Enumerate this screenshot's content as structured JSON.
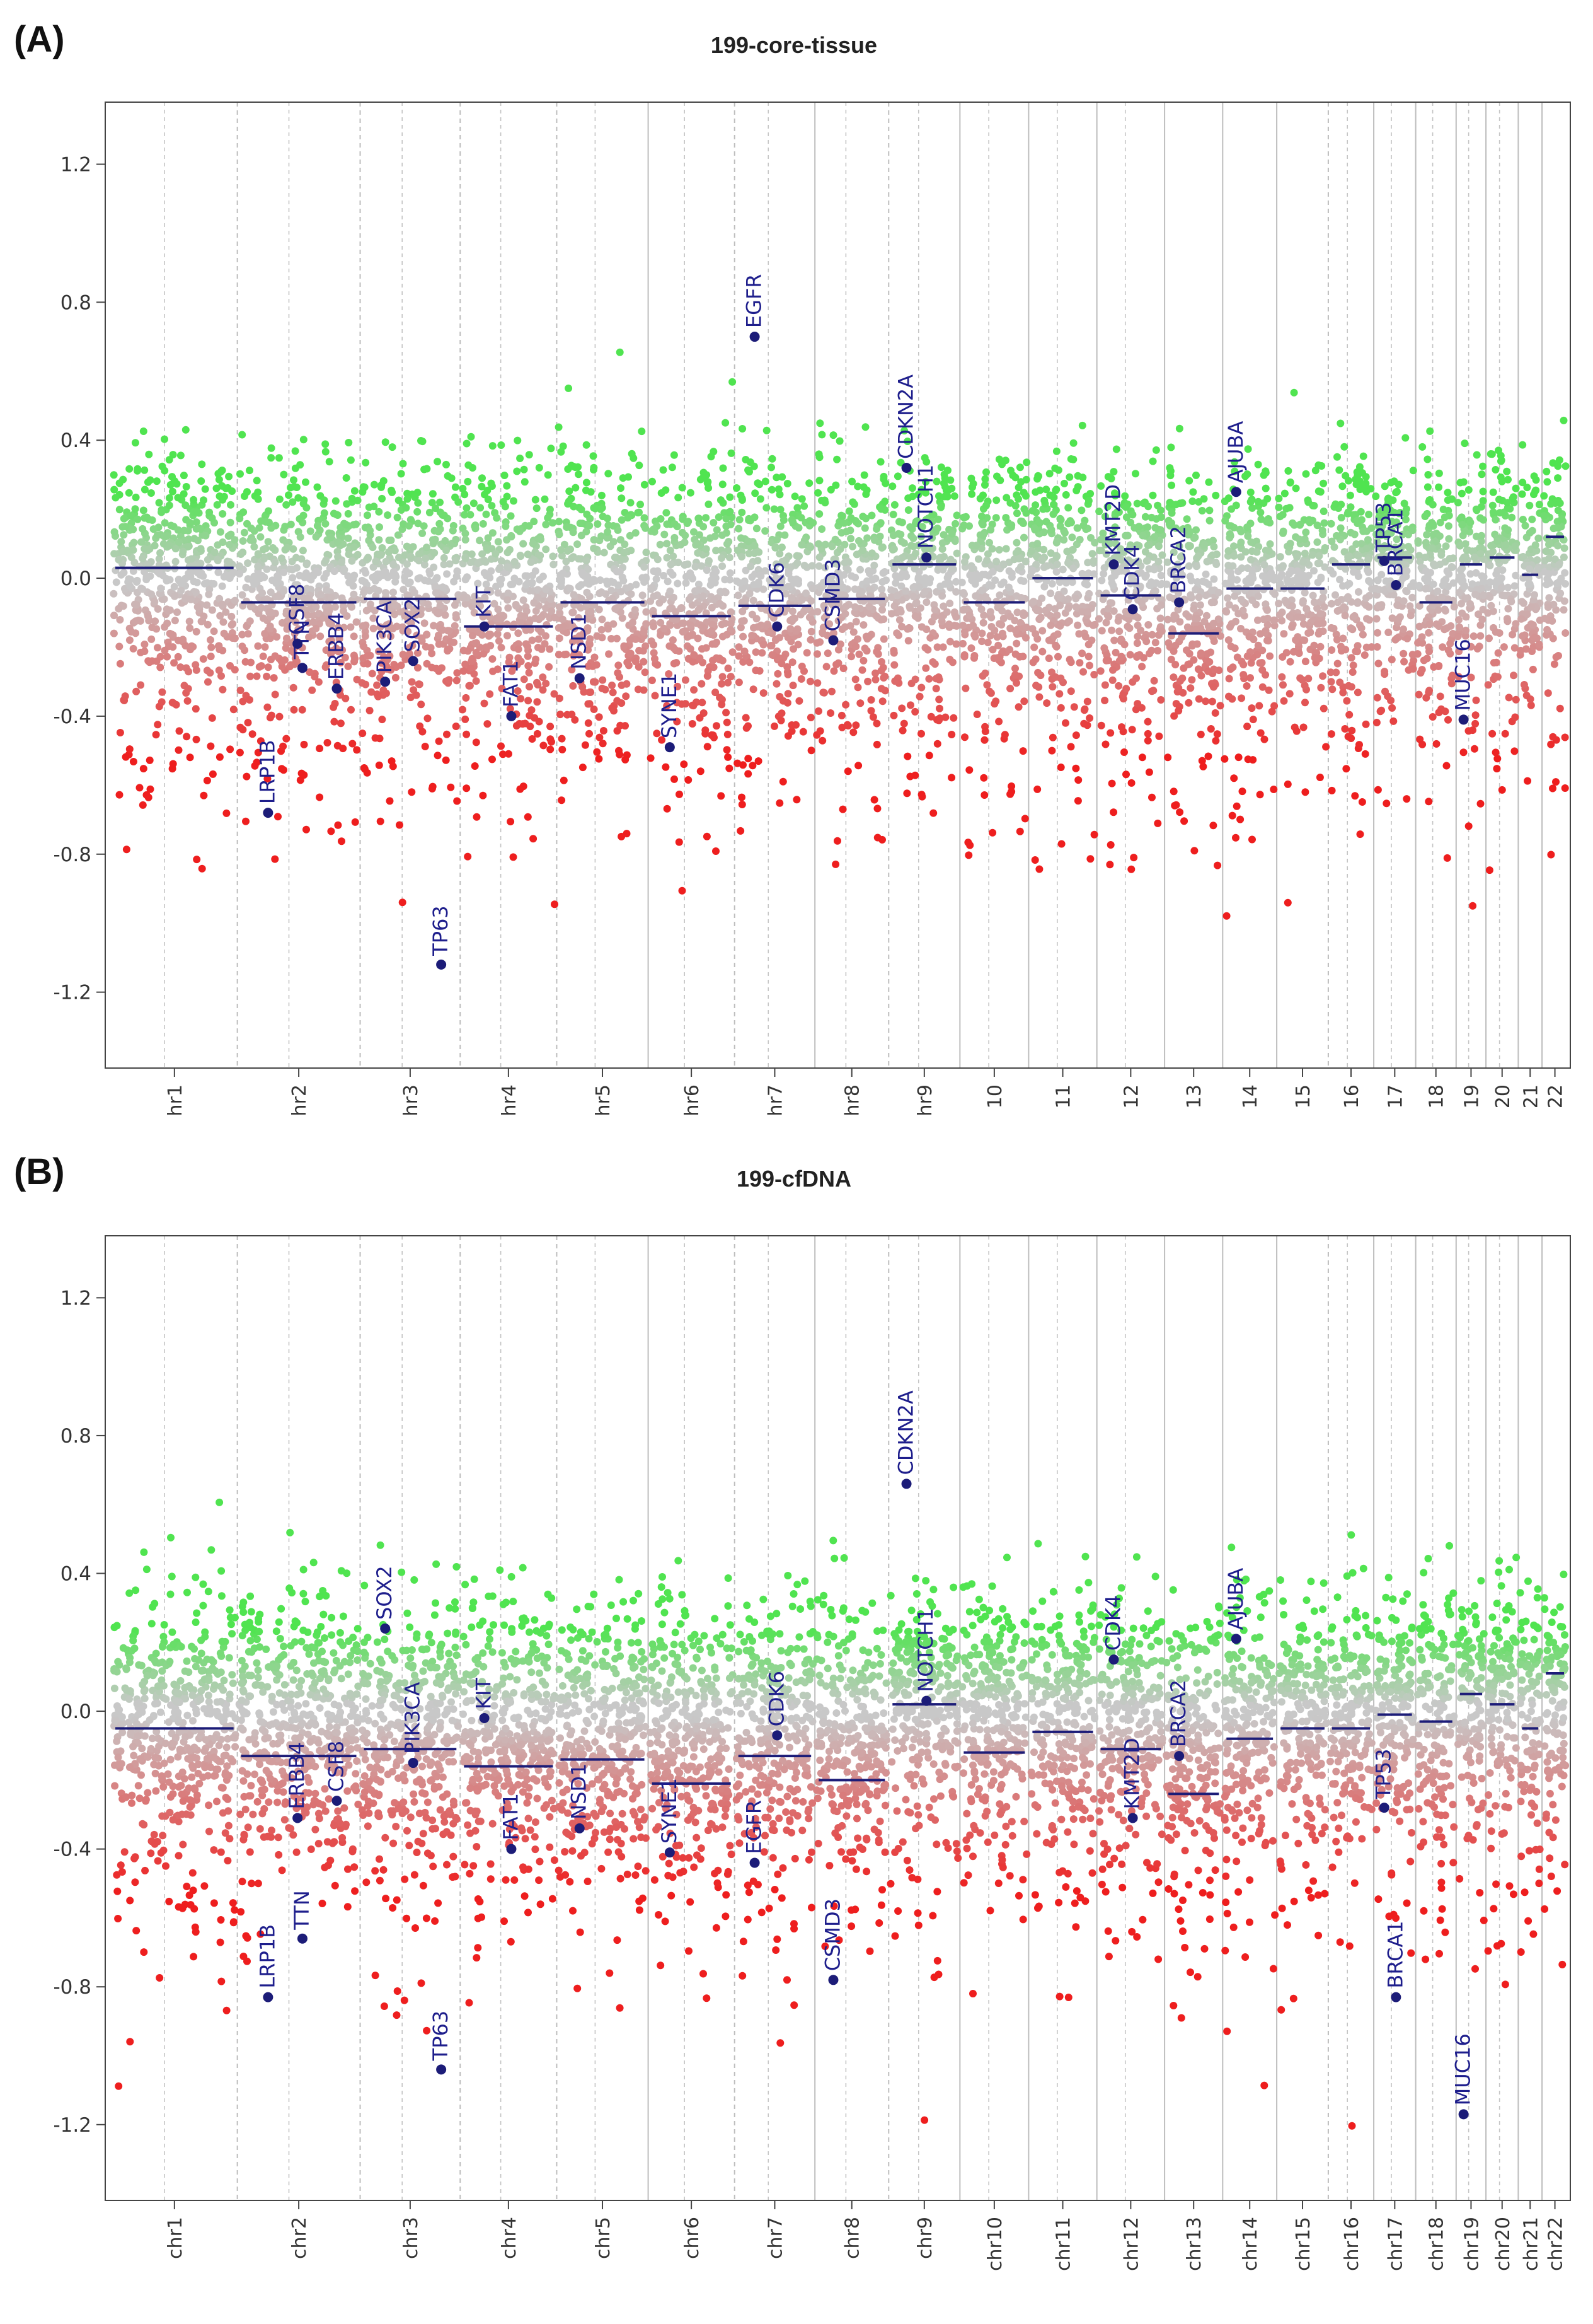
{
  "chart_data": [
    {
      "type": "scatter",
      "panel_label": "(A)",
      "title": "199-core-tissue",
      "xlabel": "",
      "ylabel": "",
      "ylim": [
        -1.42,
        1.38
      ],
      "yticks": [
        "1.2",
        "0.8",
        "0.4",
        "0.0",
        "-0.4",
        "-0.8",
        "-1.2"
      ],
      "ytick_values": [
        1.2,
        0.8,
        0.4,
        0.0,
        -0.4,
        -0.8,
        -1.2
      ],
      "chromosomes": [
        "chr1",
        "chr2",
        "chr3",
        "chr4",
        "chr5",
        "chr6",
        "chr7",
        "chr8",
        "chr9",
        "chr10",
        "chr11",
        "chr12",
        "chr13",
        "chr14",
        "chr15",
        "chr16",
        "chr17",
        "chr18",
        "chr19",
        "chr20",
        "chr21",
        "chr22"
      ],
      "chromosome_tick_labels": [
        "hr1",
        "hr2",
        "hr3",
        "hr4",
        "hr5",
        "hr6",
        "hr7",
        "hr8",
        "hr9",
        "10",
        "11",
        "12",
        "13",
        "14",
        "15",
        "16",
        "17",
        "18",
        "19",
        "20",
        "21",
        "22"
      ],
      "segment_means": [
        0.03,
        -0.07,
        -0.06,
        -0.14,
        -0.07,
        -0.11,
        -0.08,
        -0.06,
        0.04,
        -0.07,
        0.0,
        -0.05,
        -0.16,
        -0.03,
        -0.03,
        0.04,
        0.06,
        -0.07,
        0.04,
        0.06,
        0.01,
        0.12
      ],
      "colors": {
        "gain": "#33dd33",
        "neutral": "#c8c8c8",
        "loss": "#ee1111",
        "segment": "#1c1c78",
        "gene": "#1c1c78"
      },
      "genes": [
        {
          "name": "LRP1B",
          "chrom": "chr2",
          "value": -0.68
        },
        {
          "name": "TTN",
          "chrom": "chr2",
          "value": -0.26
        },
        {
          "name": "ERBB4",
          "chrom": "chr2",
          "value": -0.32
        },
        {
          "name": "CSF8",
          "chrom": "chr2",
          "value": -0.19
        },
        {
          "name": "PIK3CA",
          "chrom": "chr3",
          "value": -0.3
        },
        {
          "name": "SOX2",
          "chrom": "chr3",
          "value": -0.24
        },
        {
          "name": "TP63",
          "chrom": "chr3",
          "value": -1.12
        },
        {
          "name": "KIT",
          "chrom": "chr4",
          "value": -0.14
        },
        {
          "name": "FAT1",
          "chrom": "chr4",
          "value": -0.4
        },
        {
          "name": "NSD1",
          "chrom": "chr5",
          "value": -0.29
        },
        {
          "name": "SYNE1",
          "chrom": "chr6",
          "value": -0.49
        },
        {
          "name": "EGFR",
          "chrom": "chr7",
          "value": 0.7
        },
        {
          "name": "CDK6",
          "chrom": "chr7",
          "value": -0.14
        },
        {
          "name": "CSMD3",
          "chrom": "chr8",
          "value": -0.18
        },
        {
          "name": "CDKN2A",
          "chrom": "chr9",
          "value": 0.32
        },
        {
          "name": "NOTCH1",
          "chrom": "chr9",
          "value": 0.06
        },
        {
          "name": "KMT2D",
          "chrom": "chr12",
          "value": 0.04
        },
        {
          "name": "CDK4",
          "chrom": "chr12",
          "value": -0.09
        },
        {
          "name": "BRCA2",
          "chrom": "chr13",
          "value": -0.07
        },
        {
          "name": "AJUBA",
          "chrom": "chr14",
          "value": 0.25
        },
        {
          "name": "TP53",
          "chrom": "chr17",
          "value": 0.05
        },
        {
          "name": "BRCA1",
          "chrom": "chr17",
          "value": -0.02
        },
        {
          "name": "MUC16",
          "chrom": "chr19",
          "value": -0.41
        }
      ]
    },
    {
      "type": "scatter",
      "panel_label": "(B)",
      "title": "199-cfDNA",
      "xlabel": "",
      "ylabel": "",
      "ylim": [
        -1.42,
        1.38
      ],
      "yticks": [
        "1.2",
        "0.8",
        "0.4",
        "0.0",
        "-0.4",
        "-0.8",
        "-1.2"
      ],
      "ytick_values": [
        1.2,
        0.8,
        0.4,
        0.0,
        -0.4,
        -0.8,
        -1.2
      ],
      "chromosomes": [
        "chr1",
        "chr2",
        "chr3",
        "chr4",
        "chr5",
        "chr6",
        "chr7",
        "chr8",
        "chr9",
        "chr10",
        "chr11",
        "chr12",
        "chr13",
        "chr14",
        "chr15",
        "chr16",
        "chr17",
        "chr18",
        "chr19",
        "chr20",
        "chr21",
        "chr22"
      ],
      "chromosome_tick_labels": [
        "chr1",
        "chr2",
        "chr3",
        "chr4",
        "chr5",
        "chr6",
        "chr7",
        "chr8",
        "chr9",
        "chr10",
        "chr11",
        "chr12",
        "chr13",
        "chr14",
        "chr15",
        "chr16",
        "chr17",
        "chr18",
        "chr19",
        "chr20",
        "chr21",
        "chr22"
      ],
      "segment_means": [
        -0.05,
        -0.13,
        -0.11,
        -0.16,
        -0.14,
        -0.21,
        -0.13,
        -0.2,
        0.02,
        -0.12,
        -0.06,
        -0.11,
        -0.24,
        -0.08,
        -0.05,
        -0.05,
        -0.01,
        -0.03,
        0.05,
        0.02,
        -0.05,
        0.11
      ],
      "colors": {
        "gain": "#33dd33",
        "neutral": "#c8c8c8",
        "loss": "#ee1111",
        "segment": "#1c1c78",
        "gene": "#1c1c78"
      },
      "genes": [
        {
          "name": "LRP1B",
          "chrom": "chr2",
          "value": -0.83
        },
        {
          "name": "TTN",
          "chrom": "chr2",
          "value": -0.66
        },
        {
          "name": "CSF8",
          "chrom": "chr2",
          "value": -0.26
        },
        {
          "name": "ERBB4",
          "chrom": "chr2",
          "value": -0.31
        },
        {
          "name": "SOX2",
          "chrom": "chr3",
          "value": 0.24
        },
        {
          "name": "PIK3CA",
          "chrom": "chr3",
          "value": -0.15
        },
        {
          "name": "TP63",
          "chrom": "chr3",
          "value": -1.04
        },
        {
          "name": "KIT",
          "chrom": "chr4",
          "value": -0.02
        },
        {
          "name": "FAT1",
          "chrom": "chr4",
          "value": -0.4
        },
        {
          "name": "NSD1",
          "chrom": "chr5",
          "value": -0.34
        },
        {
          "name": "SYNE1",
          "chrom": "chr6",
          "value": -0.41
        },
        {
          "name": "EGFR",
          "chrom": "chr7",
          "value": -0.44
        },
        {
          "name": "CDK6",
          "chrom": "chr7",
          "value": -0.07
        },
        {
          "name": "CSMD3",
          "chrom": "chr8",
          "value": -0.78
        },
        {
          "name": "CDKN2A",
          "chrom": "chr9",
          "value": 0.66
        },
        {
          "name": "NOTCH1",
          "chrom": "chr9",
          "value": 0.03
        },
        {
          "name": "CDK4",
          "chrom": "chr12",
          "value": 0.15
        },
        {
          "name": "KMT2D",
          "chrom": "chr12",
          "value": -0.31
        },
        {
          "name": "BRCA2",
          "chrom": "chr13",
          "value": -0.13
        },
        {
          "name": "AJUBA",
          "chrom": "chr14",
          "value": 0.21
        },
        {
          "name": "TP53",
          "chrom": "chr17",
          "value": -0.28
        },
        {
          "name": "BRCA1",
          "chrom": "chr17",
          "value": -0.83
        },
        {
          "name": "MUC16",
          "chrom": "chr19",
          "value": -1.17
        }
      ]
    }
  ]
}
